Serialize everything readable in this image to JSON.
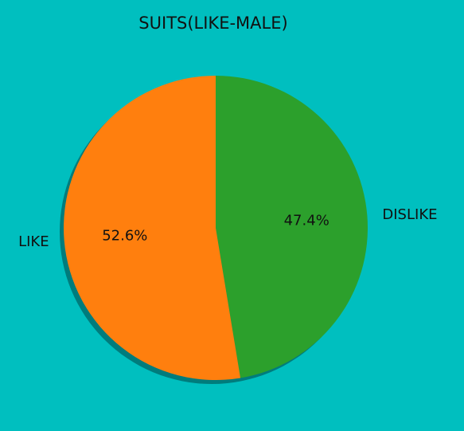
{
  "chart_data": {
    "type": "pie",
    "title": "SUITS(LIKE-MALE)",
    "slices": [
      {
        "label": "DISLIKE",
        "value": 47.4,
        "pct_label": "47.4%",
        "color": "#2ca02c"
      },
      {
        "label": "LIKE",
        "value": 52.6,
        "pct_label": "52.6%",
        "color": "#ff7f0e"
      }
    ],
    "start_angle_deg": 90,
    "direction": "clockwise",
    "shadow": true,
    "background": "#00bfbf"
  }
}
